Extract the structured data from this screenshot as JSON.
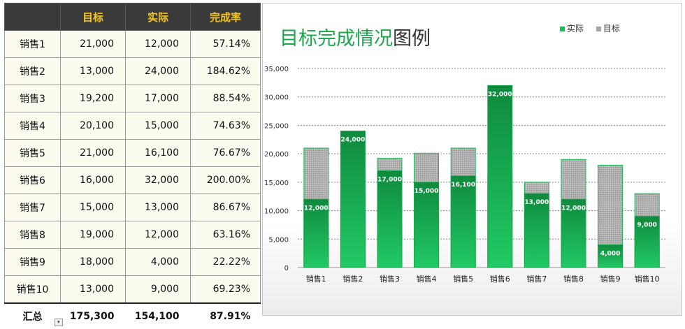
{
  "table": {
    "headers": [
      "",
      "目标",
      "实际",
      "完成率"
    ],
    "rows": [
      [
        "销售1",
        "21,000",
        "12,000",
        "57.14%"
      ],
      [
        "销售2",
        "13,000",
        "24,000",
        "184.62%"
      ],
      [
        "销售3",
        "19,200",
        "17,000",
        "88.54%"
      ],
      [
        "销售4",
        "20,100",
        "15,000",
        "74.63%"
      ],
      [
        "销售5",
        "21,000",
        "16,100",
        "76.67%"
      ],
      [
        "销售6",
        "16,000",
        "32,000",
        "200.00%"
      ],
      [
        "销售7",
        "15,000",
        "13,000",
        "86.67%"
      ],
      [
        "销售8",
        "19,000",
        "12,000",
        "63.16%"
      ],
      [
        "销售9",
        "18,000",
        "4,000",
        "22.22%"
      ],
      [
        "销售10",
        "13,000",
        "9,000",
        "69.23%"
      ]
    ],
    "total": [
      "汇总",
      "175,300",
      "154,100",
      "87.91%"
    ]
  },
  "chart_data": {
    "type": "bar",
    "title_green": "目标完成情况",
    "title_dark": "图例",
    "categories": [
      "销售1",
      "销售2",
      "销售3",
      "销售4",
      "销售5",
      "销售6",
      "销售7",
      "销售8",
      "销售9",
      "销售10"
    ],
    "series": [
      {
        "name": "实际",
        "values": [
          12000,
          24000,
          17000,
          15000,
          16100,
          32000,
          13000,
          12000,
          4000,
          9000
        ],
        "color": "#19b955"
      },
      {
        "name": "目标",
        "values": [
          21000,
          13000,
          19200,
          20100,
          21000,
          16000,
          15000,
          19000,
          18000,
          13000
        ],
        "color": "#a6a6a6"
      }
    ],
    "data_labels": [
      "12,000",
      "24,000",
      "17,000",
      "15,000",
      "16,100",
      "32,000",
      "13,000",
      "12,000",
      "4,000",
      "9,000"
    ],
    "yticks": [
      "0",
      "5,000",
      "10,000",
      "15,000",
      "20,000",
      "25,000",
      "30,000",
      "35,000"
    ],
    "ylim": [
      0,
      35000
    ],
    "grid": true,
    "legend": "top-right"
  }
}
